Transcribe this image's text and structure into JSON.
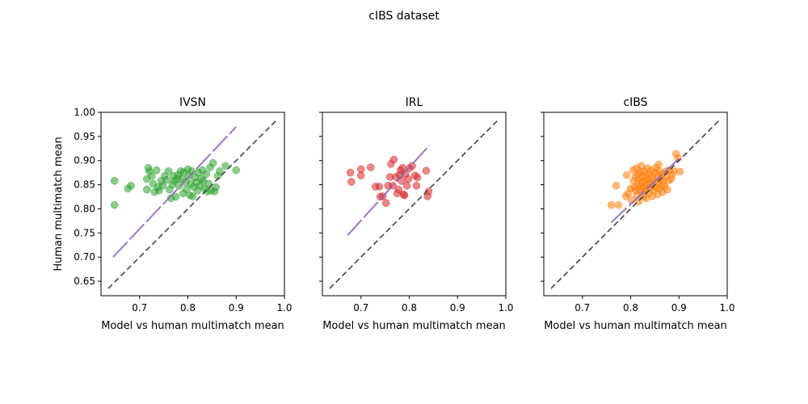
{
  "figure": {
    "title": "cIBS dataset"
  },
  "chart_data": [
    {
      "type": "scatter",
      "title": "IVSN",
      "xlabel": "Model vs human multimatch mean",
      "ylabel": "Human multimatch mean",
      "xlim": [
        0.62,
        1.0
      ],
      "ylim": [
        0.62,
        1.0
      ],
      "xticks": [
        "0.7",
        "0.8",
        "0.9",
        "1.0"
      ],
      "yticks": [
        "0.65",
        "0.70",
        "0.75",
        "0.80",
        "0.85",
        "0.90",
        "0.95",
        "1.00"
      ],
      "grid": false,
      "legend": false,
      "color": "#2ca02c",
      "points": [
        {
          "x": 0.648,
          "y": 0.858
        },
        {
          "x": 0.648,
          "y": 0.808
        },
        {
          "x": 0.676,
          "y": 0.842
        },
        {
          "x": 0.682,
          "y": 0.848
        },
        {
          "x": 0.715,
          "y": 0.862
        },
        {
          "x": 0.715,
          "y": 0.84
        },
        {
          "x": 0.718,
          "y": 0.885
        },
        {
          "x": 0.72,
          "y": 0.878
        },
        {
          "x": 0.725,
          "y": 0.868
        },
        {
          "x": 0.728,
          "y": 0.852
        },
        {
          "x": 0.731,
          "y": 0.835
        },
        {
          "x": 0.735,
          "y": 0.88
        },
        {
          "x": 0.738,
          "y": 0.845
        },
        {
          "x": 0.74,
          "y": 0.838
        },
        {
          "x": 0.745,
          "y": 0.858
        },
        {
          "x": 0.748,
          "y": 0.848
        },
        {
          "x": 0.752,
          "y": 0.868
        },
        {
          "x": 0.756,
          "y": 0.86
        },
        {
          "x": 0.76,
          "y": 0.878
        },
        {
          "x": 0.762,
          "y": 0.84
        },
        {
          "x": 0.765,
          "y": 0.822
        },
        {
          "x": 0.768,
          "y": 0.85
        },
        {
          "x": 0.77,
          "y": 0.868
        },
        {
          "x": 0.772,
          "y": 0.858
        },
        {
          "x": 0.775,
          "y": 0.825
        },
        {
          "x": 0.778,
          "y": 0.862
        },
        {
          "x": 0.78,
          "y": 0.87
        },
        {
          "x": 0.782,
          "y": 0.848
        },
        {
          "x": 0.785,
          "y": 0.878
        },
        {
          "x": 0.788,
          "y": 0.862
        },
        {
          "x": 0.79,
          "y": 0.832
        },
        {
          "x": 0.792,
          "y": 0.876
        },
        {
          "x": 0.795,
          "y": 0.855
        },
        {
          "x": 0.797,
          "y": 0.84
        },
        {
          "x": 0.8,
          "y": 0.882
        },
        {
          "x": 0.802,
          "y": 0.868
        },
        {
          "x": 0.804,
          "y": 0.828
        },
        {
          "x": 0.806,
          "y": 0.852
        },
        {
          "x": 0.808,
          "y": 0.878
        },
        {
          "x": 0.81,
          "y": 0.826
        },
        {
          "x": 0.812,
          "y": 0.845
        },
        {
          "x": 0.815,
          "y": 0.865
        },
        {
          "x": 0.818,
          "y": 0.855
        },
        {
          "x": 0.82,
          "y": 0.838
        },
        {
          "x": 0.822,
          "y": 0.875
        },
        {
          "x": 0.825,
          "y": 0.848
        },
        {
          "x": 0.828,
          "y": 0.862
        },
        {
          "x": 0.83,
          "y": 0.88
        },
        {
          "x": 0.832,
          "y": 0.858
        },
        {
          "x": 0.835,
          "y": 0.842
        },
        {
          "x": 0.838,
          "y": 0.872
        },
        {
          "x": 0.84,
          "y": 0.836
        },
        {
          "x": 0.843,
          "y": 0.852
        },
        {
          "x": 0.846,
          "y": 0.886
        },
        {
          "x": 0.848,
          "y": 0.838
        },
        {
          "x": 0.852,
          "y": 0.895
        },
        {
          "x": 0.855,
          "y": 0.836
        },
        {
          "x": 0.858,
          "y": 0.845
        },
        {
          "x": 0.862,
          "y": 0.868
        },
        {
          "x": 0.866,
          "y": 0.878
        },
        {
          "x": 0.878,
          "y": 0.889
        },
        {
          "x": 0.9,
          "y": 0.88
        }
      ],
      "fit_line": {
        "x": [
          0.645,
          0.9
        ],
        "y": [
          0.7,
          0.97
        ],
        "color": "#9467bd"
      },
      "identity_line": {
        "x": [
          0.635,
          0.985
        ],
        "y": [
          0.635,
          0.985
        ]
      }
    },
    {
      "type": "scatter",
      "title": "IRL",
      "xlabel": "Model vs human multimatch mean",
      "ylabel": "",
      "xlim": [
        0.62,
        1.0
      ],
      "ylim": [
        0.62,
        1.0
      ],
      "xticks": [
        "0.7",
        "0.8",
        "0.9",
        "1.0"
      ],
      "yticks": [],
      "grid": false,
      "legend": false,
      "color": "#d62728",
      "points": [
        {
          "x": 0.678,
          "y": 0.875
        },
        {
          "x": 0.68,
          "y": 0.856
        },
        {
          "x": 0.7,
          "y": 0.882
        },
        {
          "x": 0.7,
          "y": 0.869
        },
        {
          "x": 0.72,
          "y": 0.886
        },
        {
          "x": 0.73,
          "y": 0.846
        },
        {
          "x": 0.738,
          "y": 0.846
        },
        {
          "x": 0.74,
          "y": 0.825
        },
        {
          "x": 0.745,
          "y": 0.826
        },
        {
          "x": 0.752,
          "y": 0.812
        },
        {
          "x": 0.756,
          "y": 0.848
        },
        {
          "x": 0.76,
          "y": 0.866
        },
        {
          "x": 0.762,
          "y": 0.893
        },
        {
          "x": 0.766,
          "y": 0.848
        },
        {
          "x": 0.768,
          "y": 0.902
        },
        {
          "x": 0.772,
          "y": 0.866
        },
        {
          "x": 0.775,
          "y": 0.832
        },
        {
          "x": 0.778,
          "y": 0.84
        },
        {
          "x": 0.78,
          "y": 0.87
        },
        {
          "x": 0.782,
          "y": 0.88
        },
        {
          "x": 0.784,
          "y": 0.858
        },
        {
          "x": 0.786,
          "y": 0.885
        },
        {
          "x": 0.788,
          "y": 0.83
        },
        {
          "x": 0.79,
          "y": 0.828
        },
        {
          "x": 0.792,
          "y": 0.872
        },
        {
          "x": 0.795,
          "y": 0.848
        },
        {
          "x": 0.798,
          "y": 0.862
        },
        {
          "x": 0.8,
          "y": 0.884
        },
        {
          "x": 0.806,
          "y": 0.889
        },
        {
          "x": 0.812,
          "y": 0.869
        },
        {
          "x": 0.815,
          "y": 0.848
        },
        {
          "x": 0.817,
          "y": 0.865
        },
        {
          "x": 0.835,
          "y": 0.879
        },
        {
          "x": 0.838,
          "y": 0.826
        },
        {
          "x": 0.84,
          "y": 0.836
        }
      ],
      "fit_line": {
        "x": [
          0.672,
          0.842
        ],
        "y": [
          0.745,
          0.932
        ],
        "color": "#9467bd"
      },
      "identity_line": {
        "x": [
          0.635,
          0.985
        ],
        "y": [
          0.635,
          0.985
        ]
      }
    },
    {
      "type": "scatter",
      "title": "cIBS",
      "xlabel": "Model vs human multimatch mean",
      "ylabel": "",
      "xlim": [
        0.62,
        1.0
      ],
      "ylim": [
        0.62,
        1.0
      ],
      "xticks": [
        "0.7",
        "0.8",
        "0.9",
        "1.0"
      ],
      "yticks": [],
      "grid": false,
      "legend": false,
      "color": "#ff7f0e",
      "points": [
        {
          "x": 0.76,
          "y": 0.808
        },
        {
          "x": 0.77,
          "y": 0.848
        },
        {
          "x": 0.775,
          "y": 0.808
        },
        {
          "x": 0.79,
          "y": 0.826
        },
        {
          "x": 0.792,
          "y": 0.87
        },
        {
          "x": 0.795,
          "y": 0.832
        },
        {
          "x": 0.8,
          "y": 0.842
        },
        {
          "x": 0.802,
          "y": 0.818
        },
        {
          "x": 0.805,
          "y": 0.88
        },
        {
          "x": 0.806,
          "y": 0.858
        },
        {
          "x": 0.808,
          "y": 0.845
        },
        {
          "x": 0.81,
          "y": 0.866
        },
        {
          "x": 0.81,
          "y": 0.838
        },
        {
          "x": 0.812,
          "y": 0.884
        },
        {
          "x": 0.813,
          "y": 0.828
        },
        {
          "x": 0.815,
          "y": 0.852
        },
        {
          "x": 0.815,
          "y": 0.872
        },
        {
          "x": 0.817,
          "y": 0.815
        },
        {
          "x": 0.818,
          "y": 0.862
        },
        {
          "x": 0.818,
          "y": 0.84
        },
        {
          "x": 0.82,
          "y": 0.876
        },
        {
          "x": 0.82,
          "y": 0.848
        },
        {
          "x": 0.822,
          "y": 0.835
        },
        {
          "x": 0.822,
          "y": 0.889
        },
        {
          "x": 0.824,
          "y": 0.856
        },
        {
          "x": 0.825,
          "y": 0.866
        },
        {
          "x": 0.826,
          "y": 0.826
        },
        {
          "x": 0.827,
          "y": 0.845
        },
        {
          "x": 0.828,
          "y": 0.878
        },
        {
          "x": 0.83,
          "y": 0.858
        },
        {
          "x": 0.83,
          "y": 0.838
        },
        {
          "x": 0.832,
          "y": 0.87
        },
        {
          "x": 0.832,
          "y": 0.822
        },
        {
          "x": 0.834,
          "y": 0.85
        },
        {
          "x": 0.835,
          "y": 0.884
        },
        {
          "x": 0.836,
          "y": 0.842
        },
        {
          "x": 0.837,
          "y": 0.862
        },
        {
          "x": 0.838,
          "y": 0.832
        },
        {
          "x": 0.84,
          "y": 0.872
        },
        {
          "x": 0.84,
          "y": 0.855
        },
        {
          "x": 0.842,
          "y": 0.845
        },
        {
          "x": 0.843,
          "y": 0.88
        },
        {
          "x": 0.845,
          "y": 0.826
        },
        {
          "x": 0.845,
          "y": 0.864
        },
        {
          "x": 0.847,
          "y": 0.85
        },
        {
          "x": 0.848,
          "y": 0.838
        },
        {
          "x": 0.85,
          "y": 0.875
        },
        {
          "x": 0.85,
          "y": 0.858
        },
        {
          "x": 0.852,
          "y": 0.885
        },
        {
          "x": 0.853,
          "y": 0.844
        },
        {
          "x": 0.855,
          "y": 0.868
        },
        {
          "x": 0.856,
          "y": 0.83
        },
        {
          "x": 0.858,
          "y": 0.856
        },
        {
          "x": 0.858,
          "y": 0.892
        },
        {
          "x": 0.86,
          "y": 0.878
        },
        {
          "x": 0.86,
          "y": 0.842
        },
        {
          "x": 0.862,
          "y": 0.864
        },
        {
          "x": 0.864,
          "y": 0.85
        },
        {
          "x": 0.865,
          "y": 0.872
        },
        {
          "x": 0.866,
          "y": 0.835
        },
        {
          "x": 0.868,
          "y": 0.858
        },
        {
          "x": 0.87,
          "y": 0.846
        },
        {
          "x": 0.872,
          "y": 0.868
        },
        {
          "x": 0.874,
          "y": 0.878
        },
        {
          "x": 0.876,
          "y": 0.84
        },
        {
          "x": 0.878,
          "y": 0.858
        },
        {
          "x": 0.88,
          "y": 0.88
        },
        {
          "x": 0.884,
          "y": 0.862
        },
        {
          "x": 0.886,
          "y": 0.87
        },
        {
          "x": 0.89,
          "y": 0.878
        },
        {
          "x": 0.894,
          "y": 0.914
        },
        {
          "x": 0.898,
          "y": 0.905
        },
        {
          "x": 0.902,
          "y": 0.877
        }
      ],
      "fit_line": {
        "x": [
          0.76,
          0.9
        ],
        "y": [
          0.772,
          0.904
        ],
        "color": "#9467bd"
      },
      "identity_line": {
        "x": [
          0.635,
          0.985
        ],
        "y": [
          0.635,
          0.985
        ]
      }
    }
  ]
}
